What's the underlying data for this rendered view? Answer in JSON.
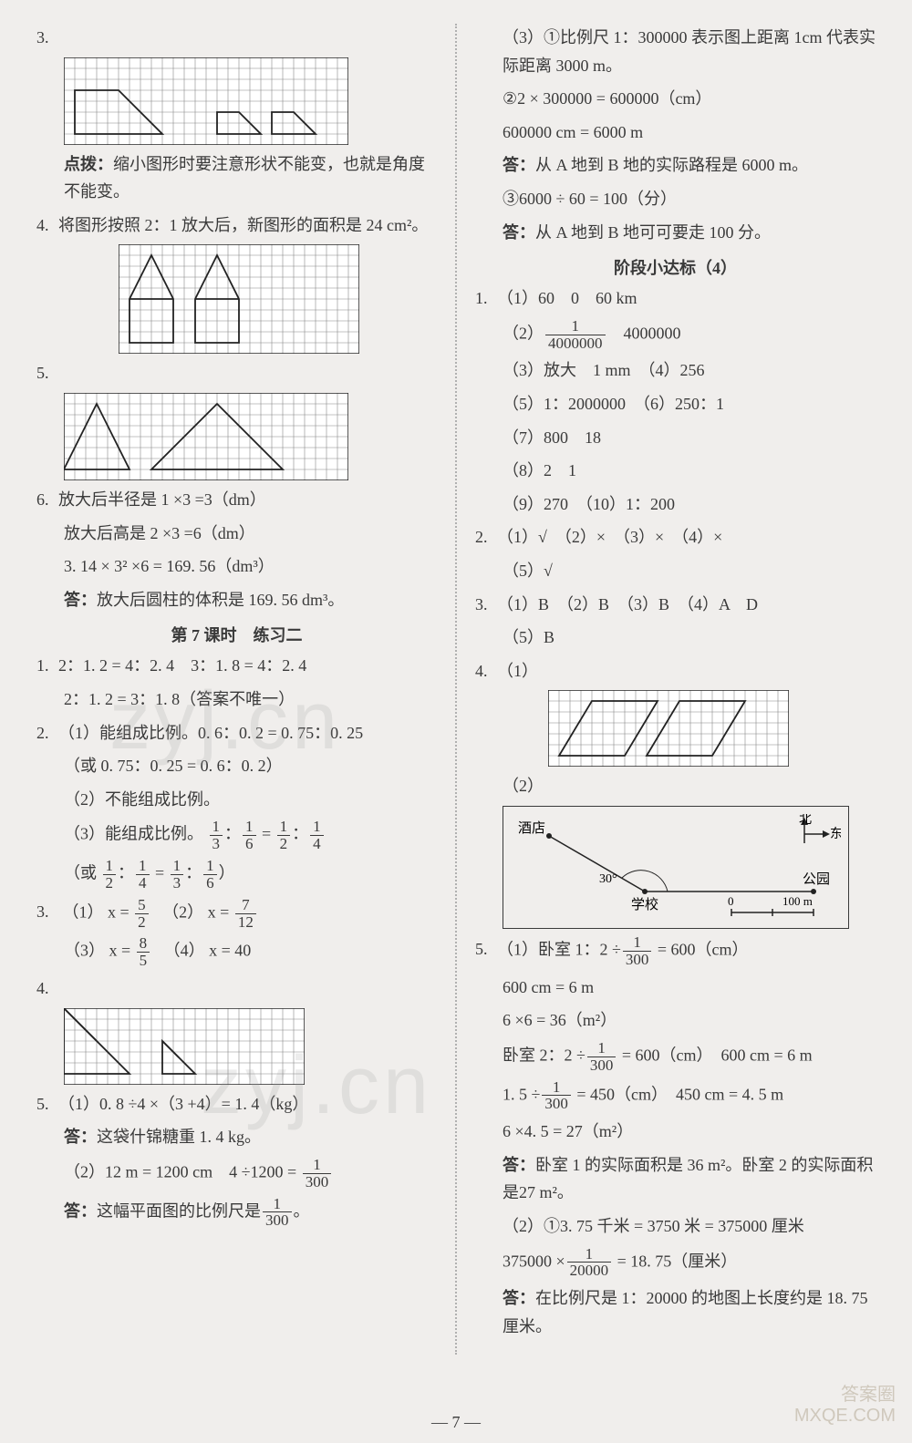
{
  "page_number": "— 7 —",
  "watermarks": [
    "zyj.cn",
    "zyj.cn"
  ],
  "corner": [
    "答案圈",
    "MXQE.COM"
  ],
  "grids": {
    "cell": 12,
    "stroke": "#888888",
    "shape_stroke": "#222222",
    "bg": "#ffffff"
  },
  "left": {
    "q3": {
      "num": "3.",
      "grid": {
        "cols": 26,
        "rows": 8,
        "shapes": [
          {
            "pts": [
              [
                1,
                7
              ],
              [
                1,
                3
              ],
              [
                5,
                3
              ],
              [
                9,
                7
              ]
            ],
            "close": true
          },
          {
            "pts": [
              [
                14,
                7
              ],
              [
                14,
                5
              ],
              [
                16,
                5
              ],
              [
                18,
                7
              ]
            ],
            "close": true
          },
          {
            "pts": [
              [
                19,
                7
              ],
              [
                19,
                5
              ],
              [
                21,
                5
              ],
              [
                23,
                7
              ]
            ],
            "close": true
          }
        ]
      },
      "note_label": "点拨：",
      "note": "缩小图形时要注意形状不能变，也就是角度不能变。"
    },
    "q4": {
      "num": "4.",
      "text": "将图形按照 2：1 放大后，新图形的面积是 24 cm²。",
      "grid": {
        "cols": 22,
        "rows": 10,
        "shapes": [
          {
            "pts": [
              [
                1,
                9
              ],
              [
                1,
                5
              ],
              [
                3,
                1
              ],
              [
                5,
                5
              ],
              [
                5,
                9
              ]
            ],
            "close": true
          },
          {
            "pts": [
              [
                7,
                9
              ],
              [
                7,
                5
              ],
              [
                9,
                1
              ],
              [
                11,
                5
              ],
              [
                11,
                9
              ]
            ],
            "close": true
          },
          {
            "pts": [
              [
                1,
                5
              ],
              [
                5,
                5
              ]
            ],
            "close": false
          },
          {
            "pts": [
              [
                7,
                5
              ],
              [
                11,
                5
              ]
            ],
            "close": false
          }
        ]
      }
    },
    "q5": {
      "num": "5.",
      "grid": {
        "cols": 26,
        "rows": 8,
        "shapes": [
          {
            "pts": [
              [
                0,
                7
              ],
              [
                3,
                1
              ],
              [
                6,
                7
              ]
            ],
            "close": true
          },
          {
            "pts": [
              [
                8,
                7
              ],
              [
                14,
                1
              ],
              [
                20,
                7
              ]
            ],
            "close": true
          }
        ]
      }
    },
    "q6": {
      "num": "6.",
      "lines": [
        "放大后半径是 1 ×3 =3（dm）",
        "放大后高是 2 ×3 =6（dm）",
        "3. 14 × 3² ×6 = 169. 56（dm³）"
      ],
      "ans_label": "答：",
      "ans": "放大后圆柱的体积是 169. 56 dm³。"
    },
    "lesson7": {
      "heading": "第 7 课时　练习二",
      "q1": {
        "num": "1.",
        "l1": "2：1. 2 = 4：2. 4　3：1. 8 = 4：2. 4",
        "l2": "2：1. 2 = 3：1. 8（答案不唯一）"
      },
      "q2": {
        "num": "2.",
        "a": "（1）能组成比例。0. 6：0. 2 = 0. 75：0. 25",
        "a2": "（或 0. 75：0. 25 = 0. 6：0. 2）",
        "b": "（2）不能组成比例。",
        "c_pre": "（3）能组成比例。",
        "c_frac": [
          "1",
          "3",
          "1",
          "6",
          "1",
          "2",
          "1",
          "4"
        ],
        "c2_pre": "（或 ",
        "c2_frac": [
          "1",
          "2",
          "1",
          "4",
          "1",
          "3",
          "1",
          "6"
        ],
        "c2_suf": "）"
      },
      "q3": {
        "num": "3.",
        "parts": [
          {
            "label": "（1） x =",
            "n": "5",
            "d": "2"
          },
          {
            "label": "（2） x =",
            "n": "7",
            "d": "12"
          },
          {
            "label": "（3） x =",
            "n": "8",
            "d": "5"
          },
          {
            "label": "（4） x = 40"
          }
        ]
      },
      "q4": {
        "num": "4.",
        "grid": {
          "cols": 22,
          "rows": 7,
          "shapes": [
            {
              "pts": [
                [
                  0,
                  0
                ],
                [
                  6,
                  6
                ],
                [
                  0,
                  6
                ]
              ],
              "close": true
            },
            {
              "pts": [
                [
                  0,
                  0
                ],
                [
                  3,
                  3
                ]
              ],
              "close": false
            },
            {
              "pts": [
                [
                  9,
                  3
                ],
                [
                  12,
                  6
                ],
                [
                  9,
                  6
                ]
              ],
              "close": true
            },
            {
              "pts": [
                [
                  9,
                  3
                ],
                [
                  10.5,
                  4.5
                ]
              ],
              "close": false
            }
          ]
        }
      },
      "q5": {
        "num": "5.",
        "a": "（1）0. 8 ÷4 ×（3 +4）= 1. 4（kg）",
        "a_ans_label": "答：",
        "a_ans": "这袋什锦糖重 1. 4 kg。",
        "b_pre": "（2）12 m = 1200 cm　4 ÷1200 = ",
        "b_n": "1",
        "b_d": "300",
        "c_pre": "这幅平面图的比例尺是",
        "c_n": "1",
        "c_d": "300",
        "c_suf": "。",
        "c_label": "答："
      }
    }
  },
  "right": {
    "q3cont": {
      "a": "（3）①比例尺 1：300000 表示图上距离 1cm 代表实际距离 3000 m。",
      "b": "②2 × 300000 = 600000（cm）",
      "c": "600000 cm = 6000 m",
      "d_label": "答：",
      "d": "从 A 地到 B 地的实际路程是 6000 m。",
      "e": "③6000 ÷ 60 = 100（分）",
      "f_label": "答：",
      "f": "从 A 地到 B 地可可要走 100 分。"
    },
    "stage4": {
      "heading": "阶段小达标（4）",
      "q1": {
        "num": "1.",
        "p1": "（1）60　0　60 km",
        "p2_pre": "（2）",
        "p2_n": "1",
        "p2_d": "4000000",
        "p2_suf": "　4000000",
        "p3": "（3）放大　1 mm　（4）256",
        "p5": "（5）1：2000000　（6）250：1",
        "p7": "（7）800　18",
        "p8": "（8）2　1",
        "p9": "（9）270　（10）1：200"
      },
      "q2": {
        "num": "2.",
        "l1": "（1）√　（2）×　（3）×　（4）×",
        "l2": "（5）√"
      },
      "q3": {
        "num": "3.",
        "l1": "（1）B　（2）B　（3）B　（4）A　D",
        "l2": "（5）B"
      },
      "q4": {
        "num": "4.",
        "p1_label": "（1）",
        "grid": {
          "cols": 22,
          "rows": 7,
          "shapes": [
            {
              "pts": [
                [
                  1,
                  6
                ],
                [
                  4,
                  1
                ],
                [
                  10,
                  1
                ],
                [
                  7,
                  6
                ]
              ],
              "close": true
            },
            {
              "pts": [
                [
                  9,
                  6
                ],
                [
                  12,
                  1
                ],
                [
                  18,
                  1
                ],
                [
                  15,
                  6
                ]
              ],
              "close": true
            }
          ]
        },
        "p2_label": "（2）",
        "map": {
          "hotel": "酒店",
          "school": "学校",
          "park": "公园",
          "north": "北",
          "east": "东",
          "angle": "30°",
          "scale_0": "0",
          "scale_100": "100 m"
        }
      },
      "q5": {
        "num": "5.",
        "a_pre": "（1）卧室 1：2 ÷",
        "a_n": "1",
        "a_d": "300",
        "a_suf": " = 600（cm）",
        "b": "600 cm = 6 m",
        "c": "6 ×6 = 36（m²）",
        "d_pre": "卧室 2：2 ÷",
        "d_n": "1",
        "d_d": "300",
        "d_suf": " = 600（cm）　600 cm = 6 m",
        "e_pre": "1. 5 ÷",
        "e_n": "1",
        "e_d": "300",
        "e_suf": " = 450（cm）　450 cm = 4. 5 m",
        "f": "6 ×4. 5 = 27（m²）",
        "g_label": "答：",
        "g": "卧室 1 的实际面积是 36 m²。卧室 2 的实际面积是27 m²。",
        "h": "（2）①3. 75 千米 = 3750 米 = 375000 厘米",
        "i_pre": "375000 ×",
        "i_n": "1",
        "i_d": "20000",
        "i_suf": " = 18. 75（厘米）",
        "j_label": "答：",
        "j": "在比例尺是 1：20000 的地图上长度约是 18. 75 厘米。"
      }
    }
  }
}
